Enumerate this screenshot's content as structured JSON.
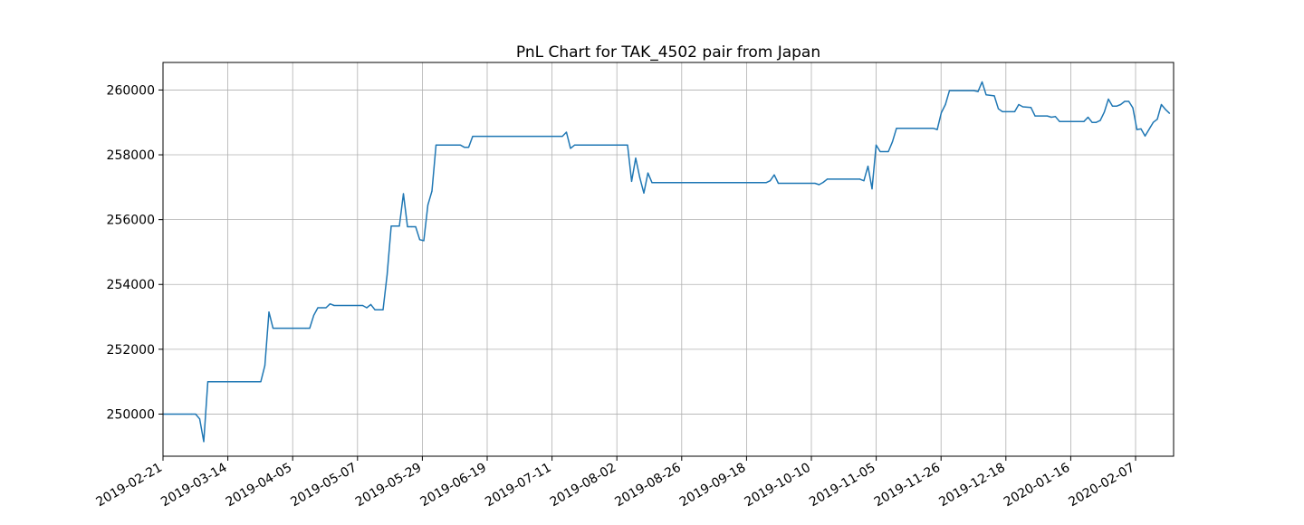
{
  "chart_data": {
    "type": "line",
    "title": "PnL Chart for TAK_4502 pair from Japan",
    "xlabel": "",
    "ylabel": "",
    "x_tick_labels": [
      "2019-02-21",
      "2019-03-14",
      "2019-04-05",
      "2019-05-07",
      "2019-05-29",
      "2019-06-19",
      "2019-07-11",
      "2019-08-02",
      "2019-08-26",
      "2019-09-18",
      "2019-10-10",
      "2019-11-05",
      "2019-11-26",
      "2019-12-18",
      "2020-01-16",
      "2020-02-07"
    ],
    "y_ticks": [
      250000,
      252000,
      254000,
      256000,
      258000,
      260000
    ],
    "y_tick_labels": [
      "250000",
      "252000",
      "254000",
      "256000",
      "258000",
      "260000"
    ],
    "ylim": [
      248700,
      260850
    ],
    "x_range_index": [
      0,
      248
    ],
    "grid": true,
    "line_color": "#1f77b4",
    "series": [
      {
        "points": [
          [
            0,
            250000
          ],
          [
            7,
            250000
          ],
          [
            8,
            250000
          ],
          [
            9,
            249850
          ],
          [
            10,
            249150
          ],
          [
            11,
            251000
          ],
          [
            12,
            251000
          ],
          [
            18,
            251000
          ],
          [
            24,
            251000
          ],
          [
            25,
            251500
          ],
          [
            26,
            253150
          ],
          [
            27,
            252650
          ],
          [
            28,
            252650
          ],
          [
            35,
            252650
          ],
          [
            36,
            252650
          ],
          [
            37,
            253050
          ],
          [
            38,
            253280
          ],
          [
            39,
            253280
          ],
          [
            40,
            253280
          ],
          [
            41,
            253400
          ],
          [
            42,
            253350
          ],
          [
            49,
            253350
          ],
          [
            50,
            253280
          ],
          [
            51,
            253380
          ],
          [
            52,
            253220
          ],
          [
            53,
            253220
          ],
          [
            54,
            253220
          ],
          [
            55,
            254300
          ],
          [
            56,
            255800
          ],
          [
            57,
            255800
          ],
          [
            58,
            255800
          ],
          [
            59,
            256800
          ],
          [
            60,
            255780
          ],
          [
            61,
            255780
          ],
          [
            62,
            255780
          ],
          [
            63,
            255380
          ],
          [
            64,
            255350
          ],
          [
            65,
            256450
          ],
          [
            66,
            256880
          ],
          [
            67,
            258300
          ],
          [
            72,
            258300
          ],
          [
            73,
            258300
          ],
          [
            74,
            258230
          ],
          [
            75,
            258230
          ],
          [
            76,
            258570
          ],
          [
            80,
            258570
          ],
          [
            98,
            258570
          ],
          [
            99,
            258700
          ],
          [
            100,
            258200
          ],
          [
            101,
            258300
          ],
          [
            102,
            258300
          ],
          [
            113,
            258300
          ],
          [
            114,
            258300
          ],
          [
            115,
            257180
          ],
          [
            116,
            257900
          ],
          [
            117,
            257300
          ],
          [
            118,
            256820
          ],
          [
            119,
            257440
          ],
          [
            120,
            257140
          ],
          [
            121,
            257140
          ],
          [
            141,
            257140
          ],
          [
            148,
            257140
          ],
          [
            149,
            257200
          ],
          [
            150,
            257380
          ],
          [
            151,
            257120
          ],
          [
            160,
            257120
          ],
          [
            161,
            257080
          ],
          [
            162,
            257150
          ],
          [
            163,
            257250
          ],
          [
            171,
            257250
          ],
          [
            172,
            257200
          ],
          [
            173,
            257650
          ],
          [
            174,
            256950
          ],
          [
            175,
            258300
          ],
          [
            176,
            258100
          ],
          [
            178,
            258100
          ],
          [
            179,
            258400
          ],
          [
            180,
            258820
          ],
          [
            181,
            258820
          ],
          [
            189,
            258820
          ],
          [
            190,
            258780
          ],
          [
            191,
            259300
          ],
          [
            192,
            259550
          ],
          [
            193,
            259980
          ],
          [
            199,
            259980
          ],
          [
            200,
            259950
          ],
          [
            201,
            260250
          ],
          [
            202,
            259850
          ],
          [
            204,
            259820
          ],
          [
            205,
            259420
          ],
          [
            206,
            259330
          ],
          [
            209,
            259330
          ],
          [
            210,
            259550
          ],
          [
            211,
            259480
          ],
          [
            213,
            259460
          ],
          [
            214,
            259200
          ],
          [
            217,
            259200
          ],
          [
            218,
            259160
          ],
          [
            219,
            259180
          ],
          [
            220,
            259030
          ],
          [
            226,
            259030
          ],
          [
            227,
            259160
          ],
          [
            228,
            259000
          ],
          [
            229,
            259000
          ],
          [
            230,
            259060
          ],
          [
            231,
            259320
          ],
          [
            232,
            259720
          ],
          [
            233,
            259500
          ],
          [
            234,
            259500
          ],
          [
            235,
            259550
          ],
          [
            236,
            259650
          ],
          [
            237,
            259650
          ],
          [
            238,
            259450
          ],
          [
            239,
            258780
          ],
          [
            240,
            258800
          ],
          [
            241,
            258580
          ],
          [
            243,
            259000
          ],
          [
            244,
            259100
          ],
          [
            245,
            259550
          ],
          [
            246,
            259400
          ],
          [
            247,
            259280
          ]
        ]
      }
    ]
  }
}
